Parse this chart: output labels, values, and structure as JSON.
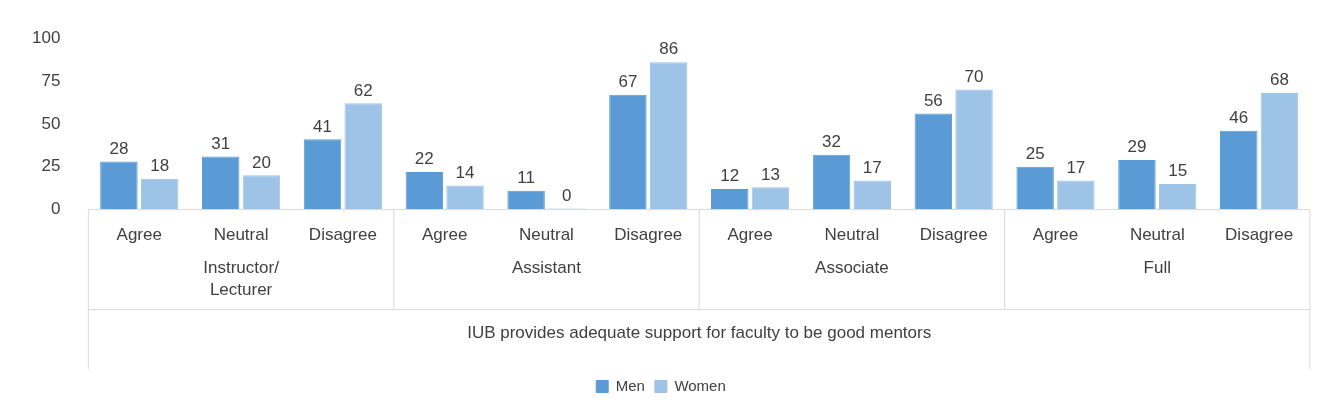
{
  "chart_data": {
    "type": "bar",
    "categories": [
      "Agree",
      "Neutral",
      "Disagree",
      "Agree",
      "Neutral",
      "Disagree",
      "Agree",
      "Neutral",
      "Disagree",
      "Agree",
      "Neutral",
      "Disagree"
    ],
    "series": [
      {
        "name": "Men",
        "color": "#5b9bd5",
        "values": [
          28,
          31,
          41,
          22,
          11,
          67,
          12,
          32,
          56,
          25,
          29,
          46
        ]
      },
      {
        "name": "Women",
        "color": "#9dc3e6",
        "values": [
          18,
          20,
          62,
          14,
          0,
          86,
          13,
          17,
          70,
          17,
          15,
          68
        ]
      }
    ],
    "annotations": [
      "Instructor/\nLecturer",
      "Assistant",
      "Associate",
      "Full"
    ],
    "xlabel": "IUB provides adequate support for faculty to be good mentors",
    "ylim": [
      0,
      100
    ],
    "yticks": [
      0,
      25,
      50,
      75,
      100
    ],
    "data_labels": true,
    "legend": "bottom"
  }
}
